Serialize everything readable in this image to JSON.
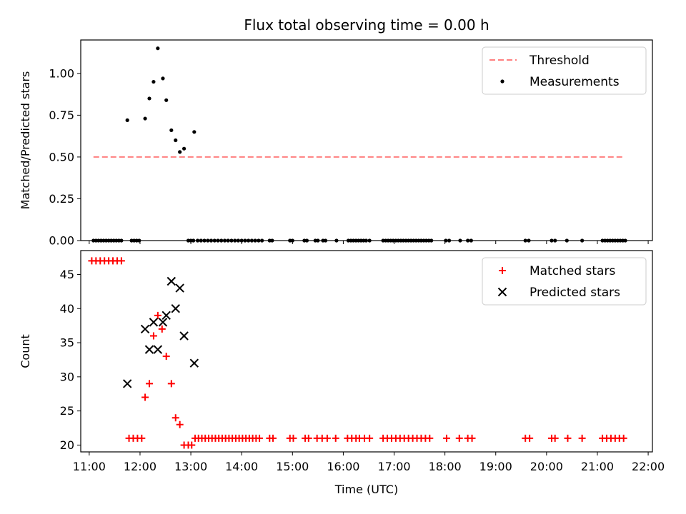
{
  "chart_data": [
    {
      "type": "scatter",
      "title": "Flux total observing time = 0.00 h",
      "xlabel": "",
      "ylabel": "Matched/Predicted stars",
      "xlim": [
        "10:50",
        "22:05"
      ],
      "ylim": [
        0,
        1.2
      ],
      "yticks": [
        0,
        0.25,
        0.5,
        0.75,
        1.0
      ],
      "ytick_labels": [
        "0.00",
        "0.25",
        "0.50",
        "0.75",
        "1.00"
      ],
      "legend_position": "top-right",
      "series": [
        {
          "name": "Threshold",
          "kind": "dashed-line",
          "color": "#ff7f7f",
          "points": [
            [
              "11:05",
              0.5
            ],
            [
              "21:30",
              0.5
            ]
          ]
        },
        {
          "name": "Measurements",
          "kind": "points",
          "color": "#000000",
          "points": [
            [
              "11:05",
              0
            ],
            [
              "11:08",
              0
            ],
            [
              "11:11",
              0
            ],
            [
              "11:14",
              0
            ],
            [
              "11:17",
              0
            ],
            [
              "11:20",
              0
            ],
            [
              "11:23",
              0
            ],
            [
              "11:26",
              0
            ],
            [
              "11:29",
              0
            ],
            [
              "11:32",
              0
            ],
            [
              "11:35",
              0
            ],
            [
              "11:38",
              0
            ],
            [
              "11:45",
              0.72
            ],
            [
              "11:50",
              0
            ],
            [
              "11:53",
              0
            ],
            [
              "11:56",
              0
            ],
            [
              "11:59",
              0
            ],
            [
              "12:06",
              0.73
            ],
            [
              "12:11",
              0.85
            ],
            [
              "12:16",
              0.95
            ],
            [
              "12:21",
              1.15
            ],
            [
              "12:27",
              0.97
            ],
            [
              "12:31",
              0.84
            ],
            [
              "12:37",
              0.66
            ],
            [
              "12:42",
              0.6
            ],
            [
              "12:47",
              0.53
            ],
            [
              "12:52",
              0.55
            ],
            [
              "13:04",
              0.65
            ],
            [
              "12:57",
              0
            ],
            [
              "13:00",
              0
            ],
            [
              "13:03",
              0
            ],
            [
              "13:08",
              0
            ],
            [
              "13:12",
              0
            ],
            [
              "13:16",
              0
            ],
            [
              "13:20",
              0
            ],
            [
              "13:24",
              0
            ],
            [
              "13:28",
              0
            ],
            [
              "13:32",
              0
            ],
            [
              "13:36",
              0
            ],
            [
              "13:40",
              0
            ],
            [
              "13:44",
              0
            ],
            [
              "13:48",
              0
            ],
            [
              "13:52",
              0
            ],
            [
              "13:56",
              0
            ],
            [
              "14:00",
              0
            ],
            [
              "14:04",
              0
            ],
            [
              "14:08",
              0
            ],
            [
              "14:12",
              0
            ],
            [
              "14:16",
              0
            ],
            [
              "14:20",
              0
            ],
            [
              "14:24",
              0
            ],
            [
              "14:33",
              0
            ],
            [
              "14:36",
              0
            ],
            [
              "14:57",
              0
            ],
            [
              "15:00",
              0
            ],
            [
              "15:14",
              0
            ],
            [
              "15:17",
              0
            ],
            [
              "15:27",
              0
            ],
            [
              "15:30",
              0
            ],
            [
              "15:36",
              0
            ],
            [
              "15:39",
              0
            ],
            [
              "15:52",
              0
            ],
            [
              "16:06",
              0
            ],
            [
              "16:09",
              0
            ],
            [
              "16:12",
              0
            ],
            [
              "16:15",
              0
            ],
            [
              "16:18",
              0
            ],
            [
              "16:21",
              0
            ],
            [
              "16:24",
              0
            ],
            [
              "16:27",
              0
            ],
            [
              "16:31",
              0
            ],
            [
              "16:47",
              0
            ],
            [
              "16:50",
              0
            ],
            [
              "16:53",
              0
            ],
            [
              "16:56",
              0
            ],
            [
              "16:59",
              0
            ],
            [
              "17:02",
              0
            ],
            [
              "17:05",
              0
            ],
            [
              "17:08",
              0
            ],
            [
              "17:11",
              0
            ],
            [
              "17:14",
              0
            ],
            [
              "17:17",
              0
            ],
            [
              "17:20",
              0
            ],
            [
              "17:23",
              0
            ],
            [
              "17:26",
              0
            ],
            [
              "17:29",
              0
            ],
            [
              "17:32",
              0
            ],
            [
              "17:35",
              0
            ],
            [
              "17:38",
              0
            ],
            [
              "17:41",
              0
            ],
            [
              "17:44",
              0
            ],
            [
              "18:01",
              0
            ],
            [
              "18:05",
              0
            ],
            [
              "18:18",
              0
            ],
            [
              "18:27",
              0
            ],
            [
              "18:31",
              0
            ],
            [
              "19:35",
              0
            ],
            [
              "19:39",
              0
            ],
            [
              "20:06",
              0
            ],
            [
              "20:10",
              0
            ],
            [
              "20:24",
              0
            ],
            [
              "20:42",
              0
            ],
            [
              "21:06",
              0
            ],
            [
              "21:09",
              0
            ],
            [
              "21:12",
              0
            ],
            [
              "21:15",
              0
            ],
            [
              "21:18",
              0
            ],
            [
              "21:21",
              0
            ],
            [
              "21:24",
              0
            ],
            [
              "21:27",
              0
            ],
            [
              "21:30",
              0
            ],
            [
              "21:33",
              0
            ]
          ]
        }
      ]
    },
    {
      "type": "scatter",
      "title": "",
      "xlabel": "Time (UTC)",
      "ylabel": "Count",
      "xlim": [
        "10:50",
        "22:05"
      ],
      "ylim": [
        19,
        48.5
      ],
      "yticks": [
        20,
        25,
        30,
        35,
        40,
        45
      ],
      "ytick_labels": [
        "20",
        "25",
        "30",
        "35",
        "40",
        "45"
      ],
      "xticks": [
        "11:00",
        "12:00",
        "13:00",
        "14:00",
        "15:00",
        "16:00",
        "17:00",
        "18:00",
        "19:00",
        "20:00",
        "21:00",
        "22:00"
      ],
      "legend_position": "top-right",
      "series": [
        {
          "name": "Matched stars",
          "kind": "plus",
          "color": "#ff0000",
          "points": [
            [
              "11:03",
              47
            ],
            [
              "11:08",
              47
            ],
            [
              "11:13",
              47
            ],
            [
              "11:18",
              47
            ],
            [
              "11:23",
              47
            ],
            [
              "11:28",
              47
            ],
            [
              "11:33",
              47
            ],
            [
              "11:38",
              47
            ],
            [
              "11:47",
              21
            ],
            [
              "11:52",
              21
            ],
            [
              "11:57",
              21
            ],
            [
              "12:02",
              21
            ],
            [
              "12:06",
              27
            ],
            [
              "12:11",
              29
            ],
            [
              "12:16",
              36
            ],
            [
              "12:21",
              39
            ],
            [
              "12:26",
              37
            ],
            [
              "12:31",
              33
            ],
            [
              "12:37",
              29
            ],
            [
              "12:42",
              24
            ],
            [
              "12:47",
              23
            ],
            [
              "12:52",
              20
            ],
            [
              "12:57",
              20
            ],
            [
              "13:01",
              20
            ],
            [
              "13:05",
              21
            ],
            [
              "13:09",
              21
            ],
            [
              "13:13",
              21
            ],
            [
              "13:17",
              21
            ],
            [
              "13:21",
              21
            ],
            [
              "13:25",
              21
            ],
            [
              "13:29",
              21
            ],
            [
              "13:33",
              21
            ],
            [
              "13:37",
              21
            ],
            [
              "13:41",
              21
            ],
            [
              "13:45",
              21
            ],
            [
              "13:49",
              21
            ],
            [
              "13:53",
              21
            ],
            [
              "13:57",
              21
            ],
            [
              "14:01",
              21
            ],
            [
              "14:05",
              21
            ],
            [
              "14:09",
              21
            ],
            [
              "14:13",
              21
            ],
            [
              "14:17",
              21
            ],
            [
              "14:21",
              21
            ],
            [
              "14:33",
              21
            ],
            [
              "14:37",
              21
            ],
            [
              "14:57",
              21
            ],
            [
              "15:01",
              21
            ],
            [
              "15:15",
              21
            ],
            [
              "15:19",
              21
            ],
            [
              "15:29",
              21
            ],
            [
              "15:35",
              21
            ],
            [
              "15:41",
              21
            ],
            [
              "15:51",
              21
            ],
            [
              "16:05",
              21
            ],
            [
              "16:10",
              21
            ],
            [
              "16:15",
              21
            ],
            [
              "16:19",
              21
            ],
            [
              "16:25",
              21
            ],
            [
              "16:31",
              21
            ],
            [
              "16:47",
              21
            ],
            [
              "16:52",
              21
            ],
            [
              "16:57",
              21
            ],
            [
              "17:02",
              21
            ],
            [
              "17:07",
              21
            ],
            [
              "17:12",
              21
            ],
            [
              "17:17",
              21
            ],
            [
              "17:22",
              21
            ],
            [
              "17:27",
              21
            ],
            [
              "17:32",
              21
            ],
            [
              "17:37",
              21
            ],
            [
              "17:42",
              21
            ],
            [
              "18:02",
              21
            ],
            [
              "18:17",
              21
            ],
            [
              "18:27",
              21
            ],
            [
              "18:32",
              21
            ],
            [
              "19:35",
              21
            ],
            [
              "19:40",
              21
            ],
            [
              "20:06",
              21
            ],
            [
              "20:10",
              21
            ],
            [
              "20:25",
              21
            ],
            [
              "20:42",
              21
            ],
            [
              "21:06",
              21
            ],
            [
              "21:11",
              21
            ],
            [
              "21:16",
              21
            ],
            [
              "21:21",
              21
            ],
            [
              "21:26",
              21
            ],
            [
              "21:31",
              21
            ]
          ]
        },
        {
          "name": "Predicted stars",
          "kind": "x",
          "color": "#000000",
          "points": [
            [
              "11:45",
              29
            ],
            [
              "12:06",
              37
            ],
            [
              "12:11",
              34
            ],
            [
              "12:16",
              38
            ],
            [
              "12:21",
              34
            ],
            [
              "12:27",
              38
            ],
            [
              "12:31",
              39
            ],
            [
              "12:37",
              44
            ],
            [
              "12:42",
              40
            ],
            [
              "12:47",
              43
            ],
            [
              "12:52",
              36
            ],
            [
              "13:04",
              32
            ]
          ]
        }
      ]
    }
  ]
}
